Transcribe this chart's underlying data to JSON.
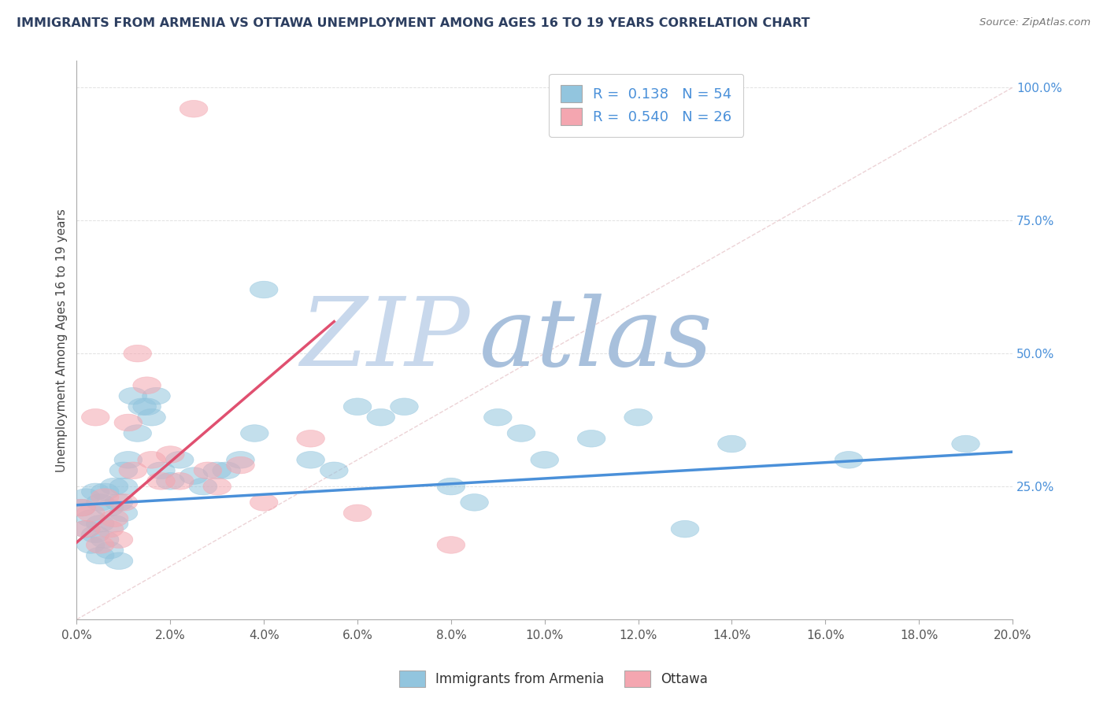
{
  "title": "IMMIGRANTS FROM ARMENIA VS OTTAWA UNEMPLOYMENT AMONG AGES 16 TO 19 YEARS CORRELATION CHART",
  "source": "Source: ZipAtlas.com",
  "xlabel_ticks": [
    "0.0%",
    "2.0%",
    "4.0%",
    "6.0%",
    "8.0%",
    "10.0%",
    "12.0%",
    "14.0%",
    "16.0%",
    "18.0%",
    "20.0%"
  ],
  "ylabel": "Unemployment Among Ages 16 to 19 years",
  "series_blue_label": "Immigrants from Armenia",
  "series_pink_label": "Ottawa",
  "R_blue": 0.138,
  "N_blue": 54,
  "R_pink": 0.54,
  "N_pink": 26,
  "blue_color": "#92C5DE",
  "pink_color": "#F4A6B0",
  "blue_line_color": "#4A90D9",
  "pink_line_color": "#E05070",
  "legend_text_color": "#4A90D9",
  "title_color": "#2C3E60",
  "watermark_zip_color": "#C8D4E8",
  "watermark_atlas_color": "#9DB8D8",
  "background_color": "#FFFFFF",
  "blue_points_x": [
    0.001,
    0.002,
    0.002,
    0.003,
    0.003,
    0.004,
    0.004,
    0.005,
    0.005,
    0.005,
    0.006,
    0.006,
    0.007,
    0.007,
    0.008,
    0.008,
    0.009,
    0.009,
    0.01,
    0.01,
    0.01,
    0.011,
    0.012,
    0.013,
    0.014,
    0.015,
    0.016,
    0.017,
    0.018,
    0.02,
    0.022,
    0.025,
    0.027,
    0.03,
    0.032,
    0.035,
    0.038,
    0.04,
    0.05,
    0.055,
    0.06,
    0.065,
    0.07,
    0.08,
    0.085,
    0.09,
    0.095,
    0.1,
    0.11,
    0.12,
    0.13,
    0.14,
    0.165,
    0.19
  ],
  "blue_points_y": [
    0.21,
    0.17,
    0.23,
    0.19,
    0.14,
    0.24,
    0.16,
    0.22,
    0.18,
    0.12,
    0.24,
    0.15,
    0.21,
    0.13,
    0.25,
    0.18,
    0.22,
    0.11,
    0.2,
    0.25,
    0.28,
    0.3,
    0.42,
    0.35,
    0.4,
    0.4,
    0.38,
    0.42,
    0.28,
    0.26,
    0.3,
    0.27,
    0.25,
    0.28,
    0.28,
    0.3,
    0.35,
    0.62,
    0.3,
    0.28,
    0.4,
    0.38,
    0.4,
    0.25,
    0.22,
    0.38,
    0.35,
    0.3,
    0.34,
    0.38,
    0.17,
    0.33,
    0.3,
    0.33
  ],
  "pink_points_x": [
    0.001,
    0.002,
    0.003,
    0.004,
    0.005,
    0.006,
    0.007,
    0.008,
    0.009,
    0.01,
    0.011,
    0.012,
    0.013,
    0.015,
    0.016,
    0.018,
    0.02,
    0.022,
    0.025,
    0.028,
    0.03,
    0.035,
    0.04,
    0.05,
    0.06,
    0.08
  ],
  "pink_points_y": [
    0.21,
    0.17,
    0.2,
    0.38,
    0.14,
    0.23,
    0.17,
    0.19,
    0.15,
    0.22,
    0.37,
    0.28,
    0.5,
    0.44,
    0.3,
    0.26,
    0.31,
    0.26,
    0.96,
    0.28,
    0.25,
    0.29,
    0.22,
    0.34,
    0.2,
    0.14
  ],
  "xlim": [
    0.0,
    0.2
  ],
  "ylim": [
    0.0,
    1.05
  ],
  "blue_trend_x": [
    0.0,
    0.2
  ],
  "blue_trend_y": [
    0.215,
    0.315
  ],
  "pink_trend_x": [
    0.0,
    0.055
  ],
  "pink_trend_y": [
    0.145,
    0.56
  ],
  "ref_line_x": [
    0.0,
    0.2
  ],
  "ref_line_y": [
    0.0,
    1.0
  ]
}
